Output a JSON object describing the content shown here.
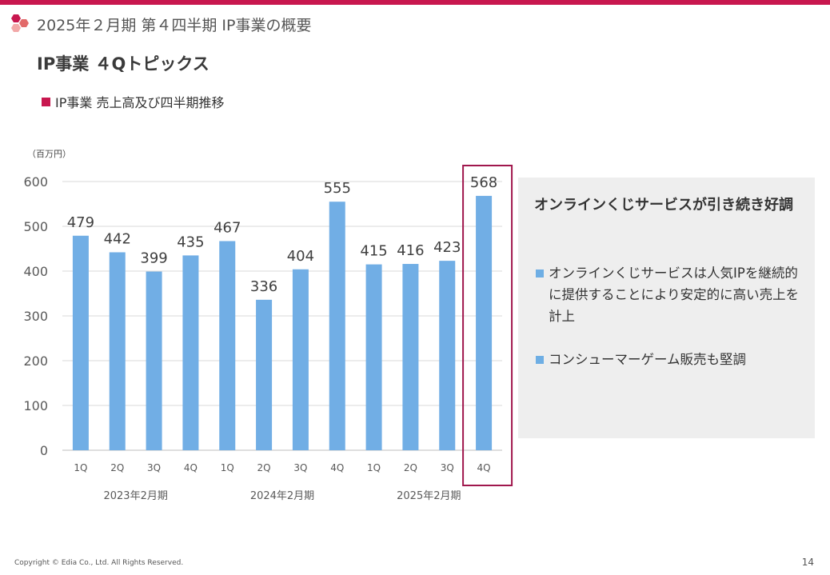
{
  "header": {
    "section_title": "2025年２月期 第４四半期 IP事業の概要",
    "slide_title": "IP事業 ４Qトピックス",
    "subtitle": "IP事業 売上高及び四半期推移",
    "accent_color": "#c8174f"
  },
  "chart_data": {
    "type": "bar",
    "title": "IP事業 売上高及び四半期推移",
    "unit_label": "（百万円）",
    "categories": [
      "1Q",
      "2Q",
      "3Q",
      "4Q",
      "1Q",
      "2Q",
      "3Q",
      "4Q",
      "1Q",
      "2Q",
      "3Q",
      "4Q"
    ],
    "values": [
      479,
      442,
      399,
      435,
      467,
      336,
      404,
      555,
      415,
      416,
      423,
      568
    ],
    "groups": [
      {
        "label": "2023年2月期",
        "quarters": 4
      },
      {
        "label": "2024年2月期",
        "quarters": 4
      },
      {
        "label": "2025年2月期",
        "quarters": 4
      }
    ],
    "yticks": [
      0,
      100,
      200,
      300,
      400,
      500,
      600
    ],
    "ylim": [
      0,
      600
    ],
    "highlight_index": 11,
    "bar_color": "#71aee5",
    "highlight_color": "#a0174d",
    "grid": true
  },
  "panel": {
    "heading": "オンラインくじサービスが引き続き好調",
    "bullets": [
      "オンラインくじサービスは人気IPを継続的に提供することにより安定的に高い売上を計上",
      "コンシューマーゲーム販売も堅調"
    ]
  },
  "footer": {
    "copyright": "Copyright © Edia Co., Ltd. All Rights Reserved.",
    "page_number": "14"
  }
}
